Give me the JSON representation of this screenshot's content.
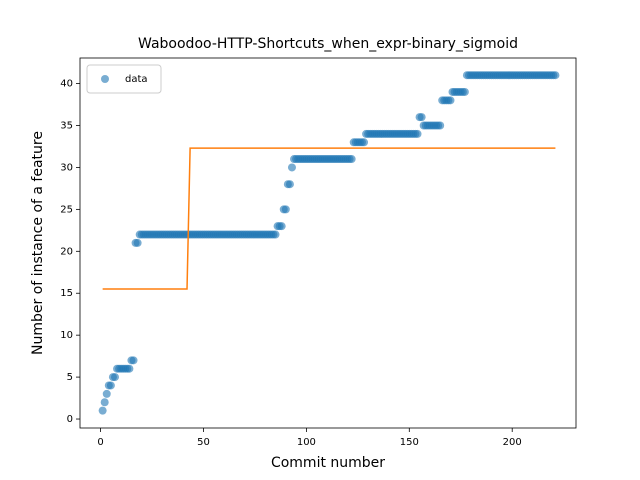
{
  "chart_data": {
    "type": "scatter",
    "title": "Waboodoo-HTTP-Shortcuts_when_expr-binary_sigmoid",
    "x_label": "Commit number",
    "y_label": "Number of instance of a feature",
    "xlim": [
      -10,
      231
    ],
    "ylim": [
      -1.07,
      43.05
    ],
    "xticks": [
      0,
      50,
      100,
      150,
      200
    ],
    "yticks": [
      0,
      5,
      10,
      15,
      20,
      25,
      30,
      35,
      40
    ],
    "legend": "upper left",
    "series": [
      {
        "name": "data",
        "color": "#1f77b4",
        "kind": "scatter",
        "x": [
          1,
          2,
          3,
          4,
          5,
          6,
          7,
          8,
          9,
          10,
          11,
          12,
          13,
          14,
          15,
          16,
          17,
          18,
          19,
          20,
          21,
          22,
          23,
          24,
          25,
          26,
          27,
          28,
          29,
          30,
          31,
          32,
          33,
          34,
          35,
          36,
          37,
          38,
          39,
          40,
          41,
          42,
          43,
          44,
          45,
          46,
          47,
          48,
          49,
          50,
          51,
          52,
          53,
          54,
          55,
          56,
          57,
          58,
          59,
          60,
          61,
          62,
          63,
          64,
          65,
          66,
          67,
          68,
          69,
          70,
          71,
          72,
          73,
          74,
          75,
          76,
          77,
          78,
          79,
          80,
          81,
          82,
          83,
          84,
          85,
          86,
          87,
          88,
          89,
          90,
          91,
          92,
          93,
          94,
          95,
          96,
          97,
          98,
          99,
          100,
          101,
          102,
          103,
          104,
          105,
          106,
          107,
          108,
          109,
          110,
          111,
          112,
          113,
          114,
          115,
          116,
          117,
          118,
          119,
          120,
          121,
          122,
          123,
          124,
          125,
          126,
          127,
          128,
          129,
          130,
          131,
          132,
          133,
          134,
          135,
          136,
          137,
          138,
          139,
          140,
          141,
          142,
          143,
          144,
          145,
          146,
          147,
          148,
          149,
          150,
          151,
          152,
          153,
          154,
          155,
          156,
          157,
          158,
          159,
          160,
          161,
          162,
          163,
          164,
          165,
          166,
          167,
          168,
          169,
          170,
          171,
          172,
          173,
          174,
          175,
          176,
          177,
          178,
          179,
          180,
          181,
          182,
          183,
          184,
          185,
          186,
          187,
          188,
          189,
          190,
          191,
          192,
          193,
          194,
          195,
          196,
          197,
          198,
          199,
          200,
          201,
          202,
          203,
          204,
          205,
          206,
          207,
          208,
          209,
          210,
          211,
          212,
          213,
          214,
          215,
          216,
          217,
          218,
          219,
          220,
          221
        ],
        "values": [
          1,
          2,
          3,
          4,
          4,
          5,
          5,
          6,
          6,
          6,
          6,
          6,
          6,
          6,
          7,
          7,
          21,
          21,
          22,
          22,
          22,
          22,
          22,
          22,
          22,
          22,
          22,
          22,
          22,
          22,
          22,
          22,
          22,
          22,
          22,
          22,
          22,
          22,
          22,
          22,
          22,
          22,
          22,
          22,
          22,
          22,
          22,
          22,
          22,
          22,
          22,
          22,
          22,
          22,
          22,
          22,
          22,
          22,
          22,
          22,
          22,
          22,
          22,
          22,
          22,
          22,
          22,
          22,
          22,
          22,
          22,
          22,
          22,
          22,
          22,
          22,
          22,
          22,
          22,
          22,
          22,
          22,
          22,
          22,
          22,
          23,
          23,
          23,
          25,
          25,
          28,
          28,
          30,
          31,
          31,
          31,
          31,
          31,
          31,
          31,
          31,
          31,
          31,
          31,
          31,
          31,
          31,
          31,
          31,
          31,
          31,
          31,
          31,
          31,
          31,
          31,
          31,
          31,
          31,
          31,
          31,
          31,
          33,
          33,
          33,
          33,
          33,
          33,
          34,
          34,
          34,
          34,
          34,
          34,
          34,
          34,
          34,
          34,
          34,
          34,
          34,
          34,
          34,
          34,
          34,
          34,
          34,
          34,
          34,
          34,
          34,
          34,
          34,
          34,
          36,
          36,
          35,
          35,
          35,
          35,
          35,
          35,
          35,
          35,
          35,
          38,
          38,
          38,
          38,
          38,
          39,
          39,
          39,
          39,
          39,
          39,
          39,
          41,
          41,
          41,
          41,
          41,
          41,
          41,
          41,
          41,
          41,
          41,
          41,
          41,
          41,
          41,
          41,
          41,
          41,
          41,
          41,
          41,
          41,
          41,
          41,
          41,
          41,
          41,
          41,
          41,
          41,
          41,
          41,
          41,
          41,
          41,
          41,
          41,
          41,
          41,
          41,
          41,
          41,
          41,
          41
        ]
      },
      {
        "color": "#ff7f0e",
        "kind": "line",
        "x": [
          1,
          42,
          43.5,
          221
        ],
        "values": [
          15.5,
          15.5,
          32.3,
          32.3
        ]
      }
    ]
  }
}
